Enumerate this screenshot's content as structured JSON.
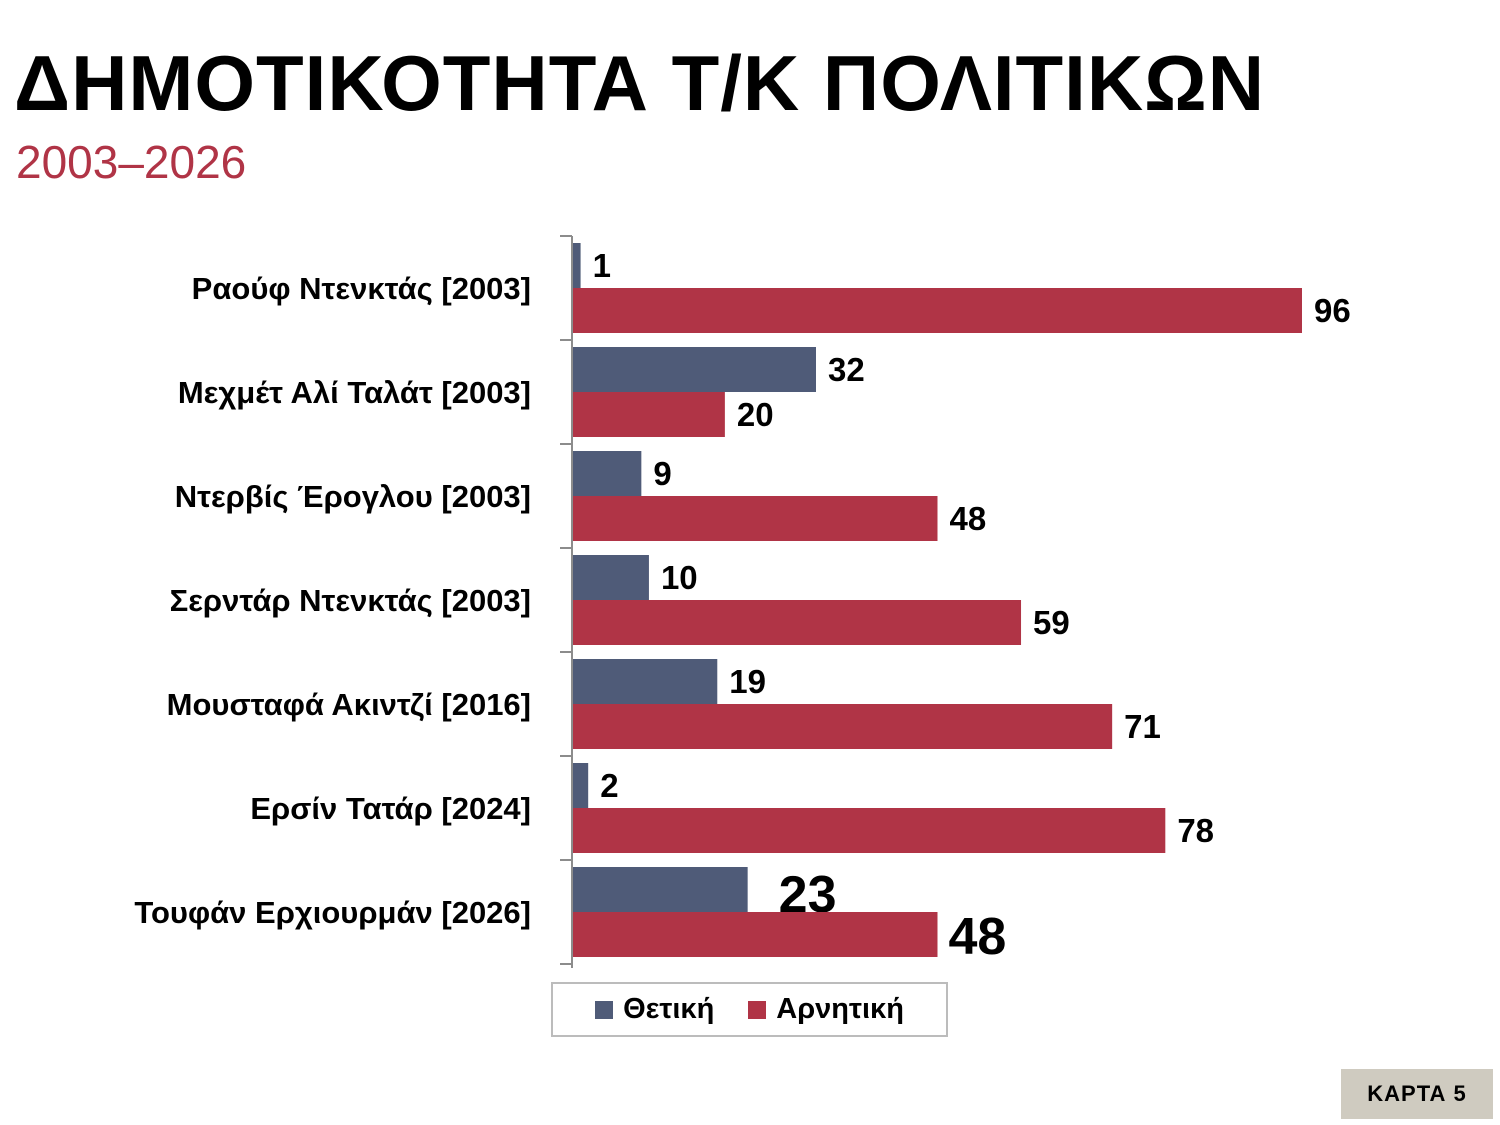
{
  "header": {
    "title": "ΔΗΜΟΤΙΚΟΤΗΤΑ Τ/Κ ΠΟΛΙΤΙΚΩΝ",
    "subtitle": "2003–2026"
  },
  "colors": {
    "positive": "#4f5b78",
    "negative": "#b03446",
    "subtitle": "#b03446",
    "badge_bg": "#cfcbc0"
  },
  "chart_data": {
    "type": "bar",
    "orientation": "horizontal",
    "categories": [
      "Ραούφ Ντενκτάς [2003]",
      "Μεχμέτ Αλί Ταλάτ [2003]",
      "Ντερβίς Έρογλου [2003]",
      "Σερντάρ Ντενκτάς [2003]",
      "Μουσταφά Ακιντζί [2016]",
      "Ερσίν Τατάρ [2024]",
      "Τουφάν Ερχιουρμάν [2026]"
    ],
    "series": [
      {
        "name": "Θετική",
        "values": [
          1,
          32,
          9,
          10,
          19,
          2,
          23
        ],
        "color": "#4f5b78"
      },
      {
        "name": "Αρνητική",
        "values": [
          96,
          20,
          48,
          59,
          71,
          78,
          48
        ],
        "color": "#b03446"
      }
    ],
    "xlim": [
      0,
      100
    ],
    "grid": false,
    "legend_position": "bottom",
    "data_labels": true
  },
  "legend": {
    "positive_label": "Θετική",
    "negative_label": "Αρνητική"
  },
  "badge": {
    "label": "ΚΑΡΤΑ 5"
  }
}
